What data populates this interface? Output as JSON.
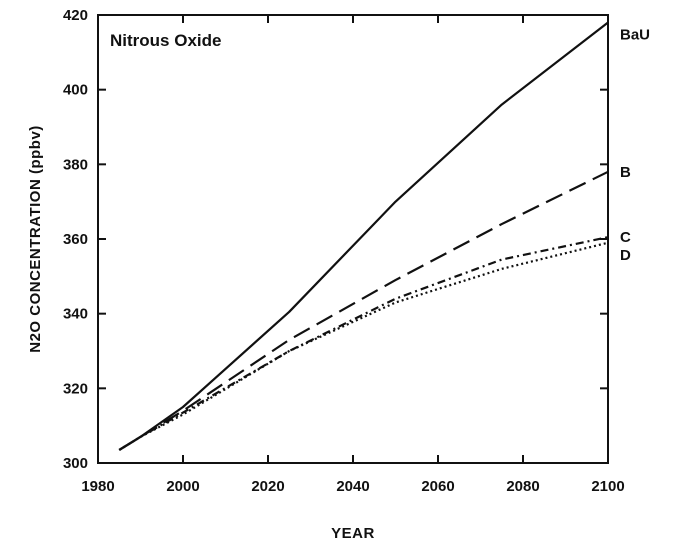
{
  "chart_data": {
    "type": "line",
    "title": "Nitrous Oxide",
    "xlabel": "YEAR",
    "ylabel": "N2O CONCENTRATION (ppbv)",
    "xlim": [
      1980,
      2100
    ],
    "ylim": [
      300,
      420
    ],
    "xticks": [
      1980,
      2000,
      2020,
      2040,
      2060,
      2080,
      2100
    ],
    "yticks": [
      300,
      320,
      340,
      360,
      380,
      400,
      420
    ],
    "grid": false,
    "series": [
      {
        "name": "BaU",
        "style": "solid",
        "x": [
          1985,
          1990,
          2000,
          2025,
          2050,
          2075,
          2100
        ],
        "y": [
          303.5,
          307,
          315,
          340.5,
          370,
          396,
          418
        ]
      },
      {
        "name": "B",
        "style": "dashed",
        "x": [
          1985,
          1990,
          2000,
          2025,
          2050,
          2075,
          2100
        ],
        "y": [
          303.5,
          307,
          314,
          333,
          349,
          364,
          378
        ]
      },
      {
        "name": "C",
        "style": "dashdot",
        "x": [
          1985,
          1990,
          2000,
          2025,
          2050,
          2075,
          2100
        ],
        "y": [
          303.5,
          307,
          313.5,
          330,
          344,
          354.5,
          360.5
        ]
      },
      {
        "name": "D",
        "style": "dotted",
        "x": [
          1985,
          1990,
          2000,
          2025,
          2050,
          2075,
          2100
        ],
        "y": [
          303.5,
          307,
          313,
          330,
          343,
          352,
          359
        ]
      }
    ]
  }
}
